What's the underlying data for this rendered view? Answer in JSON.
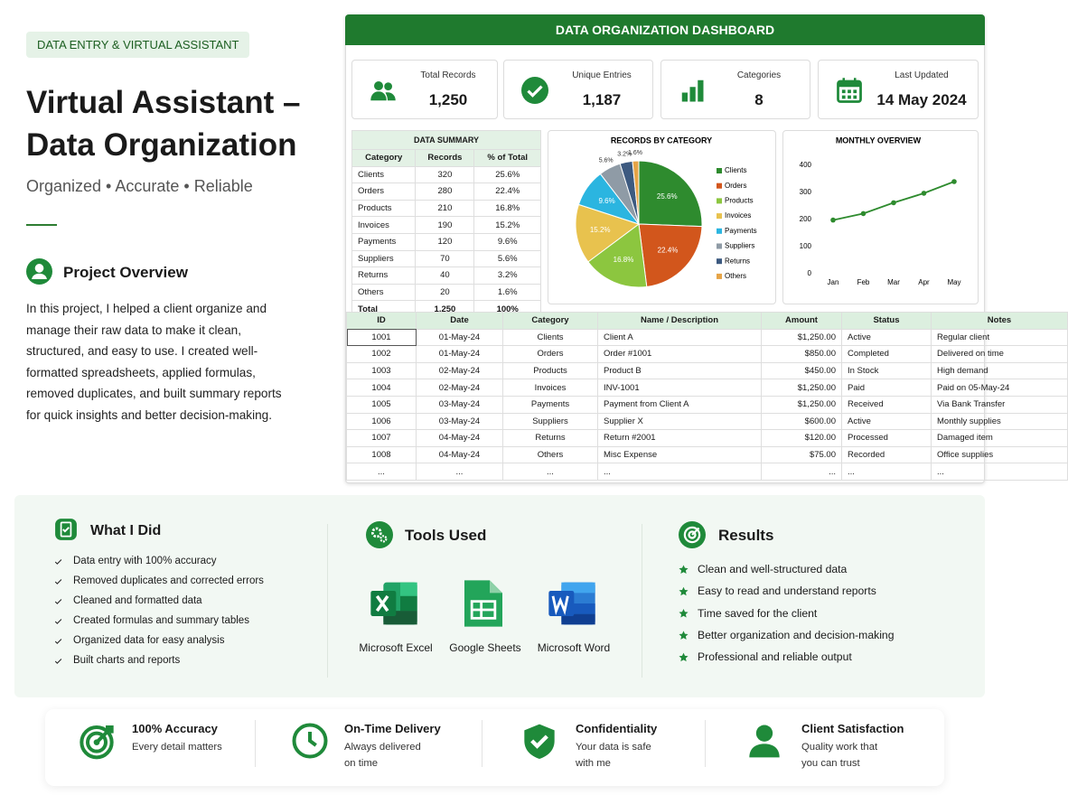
{
  "header": {
    "badge": "DATA ENTRY & VIRTUAL ASSISTANT",
    "title": "Virtual Assistant – Data Organization",
    "subtitle": "Organized • Accurate • Reliable"
  },
  "overview": {
    "heading": "Project Overview",
    "text": "In this project, I helped a client organize and manage their raw data to make it clean, structured, and easy to use. I created well-formatted spreadsheets, applied formulas, removed duplicates, and built summary reports for quick insights and better decision-making."
  },
  "dashboard": {
    "title": "DATA ORGANIZATION DASHBOARD",
    "kpis": [
      {
        "label": "Total Records",
        "value": "1,250"
      },
      {
        "label": "Unique Entries",
        "value": "1,187"
      },
      {
        "label": "Categories",
        "value": "8"
      },
      {
        "label": "Last Updated",
        "value": "14 May 2024"
      }
    ],
    "summary": {
      "title": "DATA SUMMARY",
      "columns": [
        "Category",
        "Records",
        "% of Total"
      ],
      "rows": [
        [
          "Clients",
          "320",
          "25.6%"
        ],
        [
          "Orders",
          "280",
          "22.4%"
        ],
        [
          "Products",
          "210",
          "16.8%"
        ],
        [
          "Invoices",
          "190",
          "15.2%"
        ],
        [
          "Payments",
          "120",
          "9.6%"
        ],
        [
          "Suppliers",
          "70",
          "5.6%"
        ],
        [
          "Returns",
          "40",
          "3.2%"
        ],
        [
          "Others",
          "20",
          "1.6%"
        ],
        [
          "Total",
          "1,250",
          "100%"
        ]
      ]
    },
    "records": {
      "columns": [
        "ID",
        "Date",
        "Category",
        "Name / Description",
        "Amount",
        "Status",
        "Notes"
      ],
      "rows": [
        [
          "1001",
          "01-May-24",
          "Clients",
          "Client A",
          "$1,250.00",
          "Active",
          "Regular client"
        ],
        [
          "1002",
          "01-May-24",
          "Orders",
          "Order #1001",
          "$850.00",
          "Completed",
          "Delivered on time"
        ],
        [
          "1003",
          "02-May-24",
          "Products",
          "Product B",
          "$450.00",
          "In Stock",
          "High demand"
        ],
        [
          "1004",
          "02-May-24",
          "Invoices",
          "INV-1001",
          "$1,250.00",
          "Paid",
          "Paid on 05-May-24"
        ],
        [
          "1005",
          "03-May-24",
          "Payments",
          "Payment from Client A",
          "$1,250.00",
          "Received",
          "Via Bank Transfer"
        ],
        [
          "1006",
          "03-May-24",
          "Suppliers",
          "Supplier X",
          "$600.00",
          "Active",
          "Monthly supplies"
        ],
        [
          "1007",
          "04-May-24",
          "Returns",
          "Return #2001",
          "$120.00",
          "Processed",
          "Damaged item"
        ],
        [
          "1008",
          "04-May-24",
          "Others",
          "Misc Expense",
          "$75.00",
          "Recorded",
          "Office supplies"
        ],
        [
          "...",
          "...",
          "...",
          "...",
          "...",
          "...",
          "..."
        ]
      ]
    }
  },
  "chart_data": [
    {
      "type": "pie",
      "title": "RECORDS BY CATEGORY",
      "categories": [
        "Clients",
        "Orders",
        "Products",
        "Invoices",
        "Payments",
        "Suppliers",
        "Returns",
        "Others"
      ],
      "values": [
        25.6,
        22.4,
        16.8,
        15.2,
        9.6,
        5.6,
        3.2,
        1.6
      ],
      "value_labels": [
        "25.6%",
        "22.4%",
        "16.8%",
        "15.2%",
        "9.6%",
        "5.6%",
        "3.2%",
        "1.6%"
      ],
      "colors": [
        "#2e8b2e",
        "#d2561c",
        "#8cc63f",
        "#e8c24e",
        "#2bb5e0",
        "#8f9ba6",
        "#3d5a80",
        "#e6a447"
      ],
      "legend": "right"
    },
    {
      "type": "line",
      "title": "MONTHLY OVERVIEW",
      "categories": [
        "Jan",
        "Feb",
        "Mar",
        "Apr",
        "May"
      ],
      "values": [
        198,
        222,
        262,
        297,
        340
      ],
      "color": "#2e8b2e",
      "ylim": [
        0,
        400
      ],
      "yticks": [
        0,
        100,
        200,
        300,
        400
      ],
      "grid": false
    }
  ],
  "what_i_did": {
    "heading": "What I Did",
    "items": [
      "Data entry with 100% accuracy",
      "Removed duplicates and corrected errors",
      "Cleaned and formatted data",
      "Created formulas and summary tables",
      "Organized data for easy analysis",
      "Built charts and reports"
    ]
  },
  "tools": {
    "heading": "Tools Used",
    "items": [
      "Microsoft Excel",
      "Google Sheets",
      "Microsoft Word"
    ]
  },
  "results": {
    "heading": "Results",
    "items": [
      "Clean and well-structured data",
      "Easy to read and understand reports",
      "Time saved for the client",
      "Better organization and decision-making",
      "Professional and reliable output"
    ]
  },
  "features": [
    {
      "title": "100% Accuracy",
      "text": "Every detail matters"
    },
    {
      "title": "On-Time Delivery",
      "text": "Always delivered on time"
    },
    {
      "title": "Confidentiality",
      "text": "Your data is safe with me"
    },
    {
      "title": "Client Satisfaction",
      "text": "Quality work that you can trust"
    }
  ]
}
